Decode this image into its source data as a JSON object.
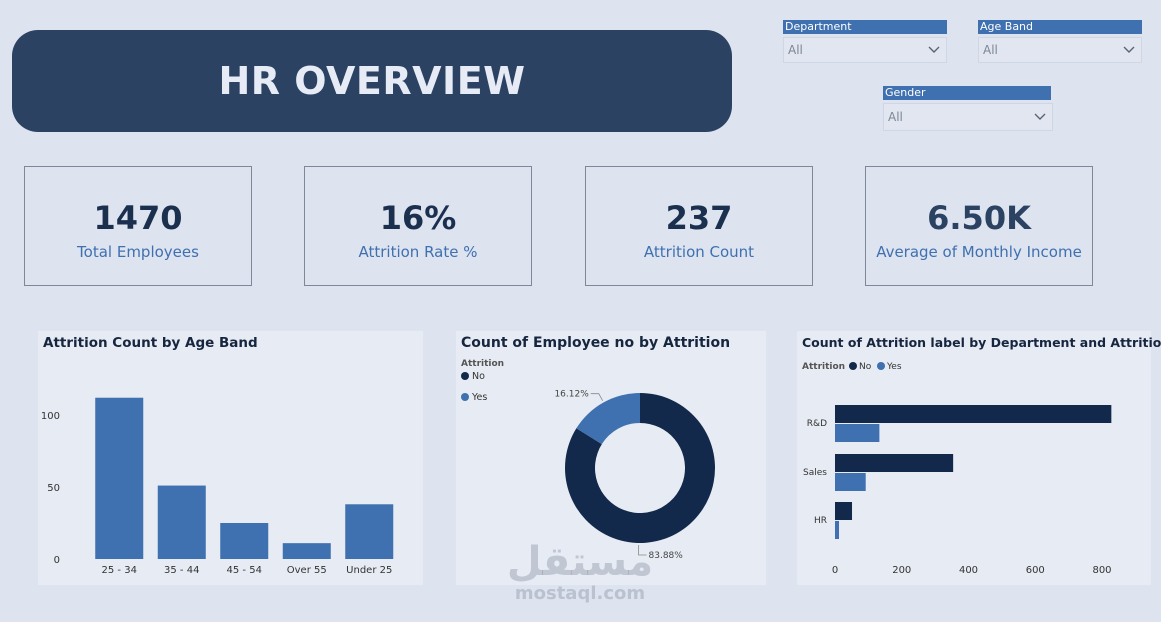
{
  "header": {
    "title": "HR OVERVIEW"
  },
  "slicers": {
    "department": {
      "label": "Department",
      "value": "All"
    },
    "age_band": {
      "label": "Age Band",
      "value": "All"
    },
    "gender": {
      "label": "Gender",
      "value": "All"
    }
  },
  "kpis": [
    {
      "value": "1470",
      "label": "Total Employees"
    },
    {
      "value": "16%",
      "label": "Attrition Rate %"
    },
    {
      "value": "237",
      "label": "Attrition Count"
    },
    {
      "value": "6.50K",
      "label": "Average of Monthly Income"
    }
  ],
  "watermark": {
    "arabic": "مستقل",
    "latin": "mostaql.com"
  },
  "colors": {
    "no": "#13294b",
    "yes": "#3f70b0",
    "banner": "#2b4262",
    "accent": "#3f70b0"
  },
  "chart_data": [
    {
      "type": "bar",
      "title": "Attrition Count by Age Band",
      "categories": [
        "25 - 34",
        "35 - 44",
        "45 - 54",
        "Over 55",
        "Under 25"
      ],
      "values": [
        112,
        51,
        25,
        11,
        38
      ],
      "yticks": [
        0,
        50,
        100
      ],
      "ylim": [
        0,
        125
      ],
      "grid": false
    },
    {
      "type": "pie",
      "title": "Count of Employee no by Attrition",
      "legend_title": "Attrition",
      "legend_position": "top-left",
      "slices": [
        {
          "label": "No",
          "percent": 83.88,
          "percent_label": "83.88%"
        },
        {
          "label": "Yes",
          "percent": 16.12,
          "percent_label": "16.12%"
        }
      ]
    },
    {
      "type": "bar",
      "orientation": "horizontal",
      "title": "Count of Attrition label by Department and Attrition",
      "legend_title": "Attrition",
      "legend_position": "top-left",
      "categories": [
        "R&D",
        "Sales",
        "HR"
      ],
      "series": [
        {
          "name": "No",
          "values": [
            828,
            354,
            51
          ]
        },
        {
          "name": "Yes",
          "values": [
            133,
            92,
            12
          ]
        }
      ],
      "xticks": [
        0,
        200,
        400,
        600,
        800
      ],
      "xlim": [
        0,
        900
      ],
      "grid": false
    }
  ]
}
